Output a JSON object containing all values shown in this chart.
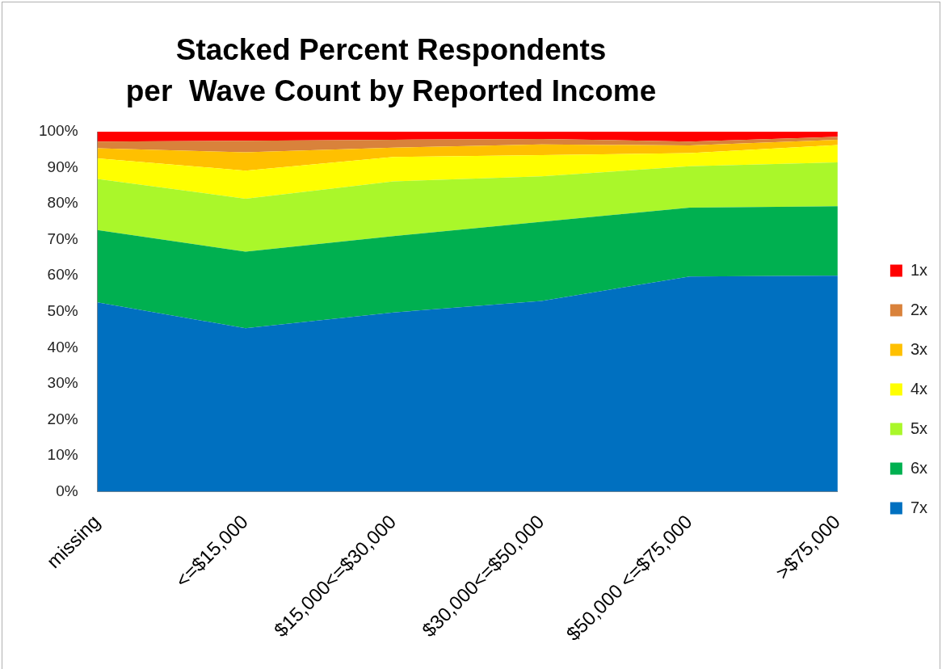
{
  "chart_data": {
    "type": "area",
    "title": "Stacked Percent Respondents\nper  Wave Count by Reported Income",
    "categories": [
      "missing",
      "<=$15,000",
      "$15,000<=$30,000",
      "$30,000<=$50,000",
      "$50,000 <=$75,000",
      ">$75,000"
    ],
    "series": [
      {
        "name": "7x",
        "color": "#0070c0",
        "values": [
          52.6,
          45.4,
          49.8,
          53.0,
          59.8,
          60.0
        ]
      },
      {
        "name": "6x",
        "color": "#00b050",
        "values": [
          20.1,
          21.3,
          21.2,
          22.0,
          19.1,
          19.3
        ]
      },
      {
        "name": "5x",
        "color": "#aaf72a",
        "values": [
          14.2,
          14.7,
          15.2,
          12.6,
          11.5,
          12.2
        ]
      },
      {
        "name": "4x",
        "color": "#ffff00",
        "values": [
          5.7,
          7.8,
          6.8,
          5.9,
          3.7,
          4.8
        ]
      },
      {
        "name": "3x",
        "color": "#ffc000",
        "values": [
          2.8,
          5.1,
          2.6,
          3.0,
          2.1,
          1.5
        ]
      },
      {
        "name": "2x",
        "color": "#d9823b",
        "values": [
          1.9,
          3.2,
          2.2,
          1.5,
          1.1,
          0.8
        ]
      },
      {
        "name": "1x",
        "color": "#ff0000",
        "values": [
          2.7,
          2.5,
          2.2,
          2.0,
          2.7,
          1.4
        ]
      }
    ],
    "stacked": true,
    "ylim": [
      0,
      100
    ],
    "yticks": [
      {
        "value": 0,
        "label": "0%"
      },
      {
        "value": 10,
        "label": "10%"
      },
      {
        "value": 20,
        "label": "20%"
      },
      {
        "value": 30,
        "label": "30%"
      },
      {
        "value": 40,
        "label": "40%"
      },
      {
        "value": 50,
        "label": "50%"
      },
      {
        "value": 60,
        "label": "60%"
      },
      {
        "value": 70,
        "label": "70%"
      },
      {
        "value": 80,
        "label": "80%"
      },
      {
        "value": 90,
        "label": "90%"
      },
      {
        "value": 100,
        "label": "100%"
      }
    ],
    "legend": "right"
  }
}
